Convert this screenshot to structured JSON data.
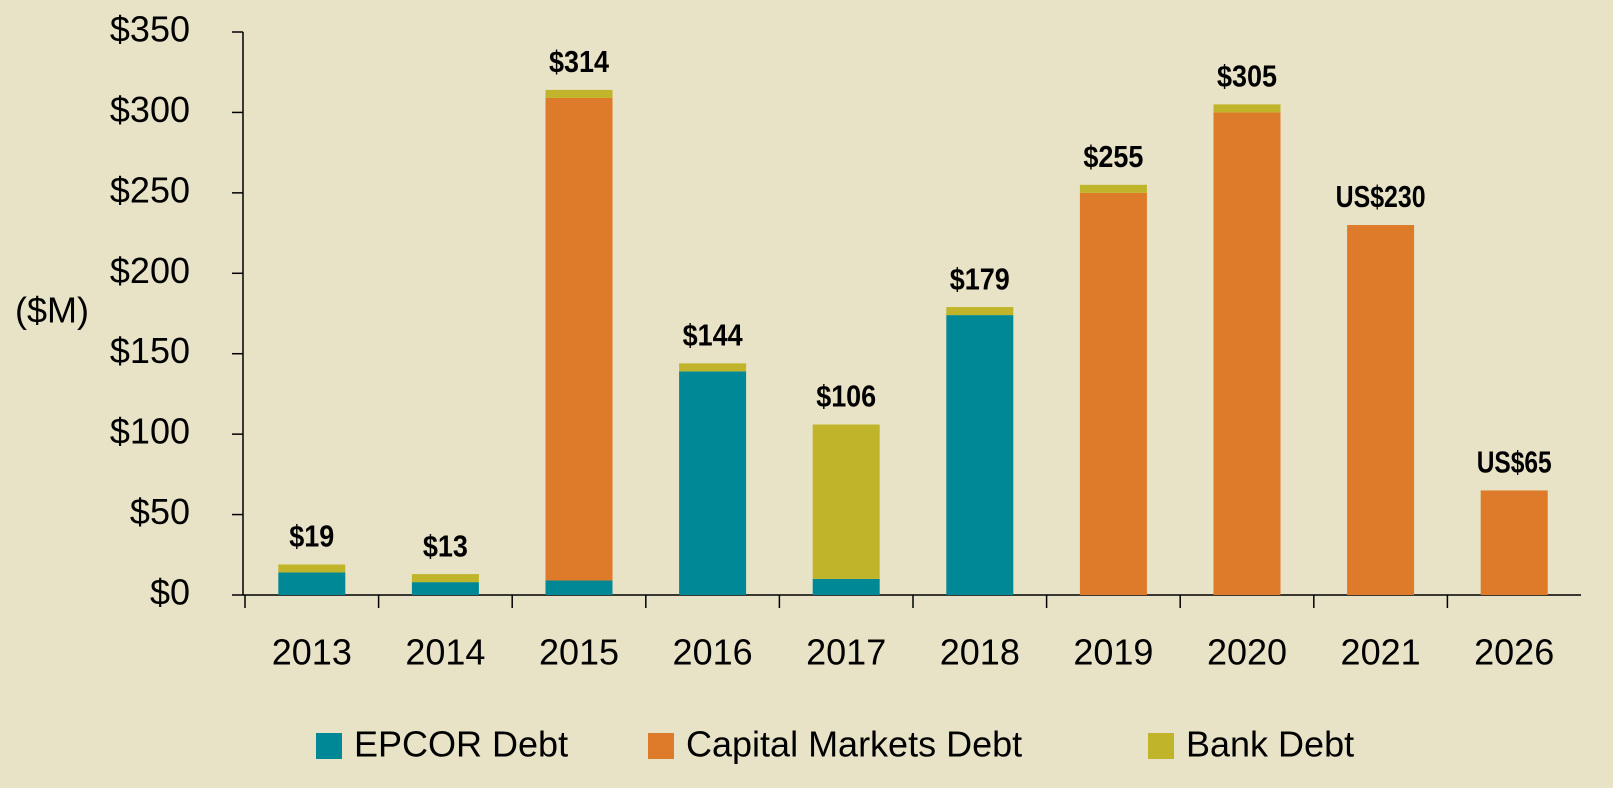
{
  "chart_data": {
    "type": "stacked_bar",
    "y_axis_label": "($M)",
    "categories": [
      "2013",
      "2014",
      "2015",
      "2016",
      "2017",
      "2018",
      "2019",
      "2020",
      "2021",
      "2026"
    ],
    "series": [
      {
        "name": "EPCOR Debt",
        "color": "#008896",
        "values": [
          14,
          8,
          9,
          139,
          10,
          174,
          0,
          0,
          0,
          0
        ]
      },
      {
        "name": "Capital Markets Debt",
        "color": "#dd7b2a",
        "values": [
          0,
          0,
          300,
          0,
          0,
          0,
          250,
          300,
          230,
          65
        ]
      },
      {
        "name": "Bank Debt",
        "color": "#c0b52a",
        "values": [
          5,
          5,
          5,
          5,
          96,
          5,
          5,
          5,
          0,
          0
        ]
      }
    ],
    "totals": [
      19,
      13,
      314,
      144,
      106,
      179,
      255,
      305,
      230,
      65
    ],
    "total_labels": [
      "$19",
      "$13",
      "$314",
      "$144",
      "$106",
      "$179",
      "$255",
      "$305",
      "US$230",
      "US$65"
    ],
    "ylim": [
      0,
      350
    ],
    "yticks": [
      {
        "value": 0,
        "label": "$0"
      },
      {
        "value": 50,
        "label": "$50"
      },
      {
        "value": 100,
        "label": "$100"
      },
      {
        "value": 150,
        "label": "$150"
      },
      {
        "value": 200,
        "label": "$200"
      },
      {
        "value": 250,
        "label": "$250"
      },
      {
        "value": 300,
        "label": "$300"
      },
      {
        "value": 350,
        "label": "$350"
      }
    ],
    "legend": "bottom"
  }
}
